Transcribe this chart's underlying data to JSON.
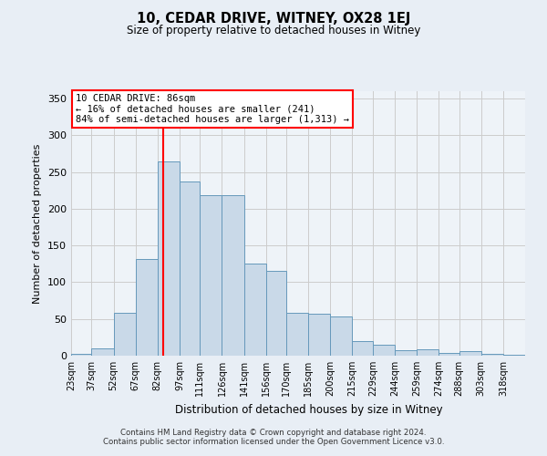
{
  "title": "10, CEDAR DRIVE, WITNEY, OX28 1EJ",
  "subtitle": "Size of property relative to detached houses in Witney",
  "xlabel": "Distribution of detached houses by size in Witney",
  "ylabel": "Number of detached properties",
  "bins": [
    "23sqm",
    "37sqm",
    "52sqm",
    "67sqm",
    "82sqm",
    "97sqm",
    "111sqm",
    "126sqm",
    "141sqm",
    "156sqm",
    "170sqm",
    "185sqm",
    "200sqm",
    "215sqm",
    "229sqm",
    "244sqm",
    "259sqm",
    "274sqm",
    "288sqm",
    "303sqm",
    "318sqm"
  ],
  "bin_edges": [
    23,
    37,
    52,
    67,
    82,
    97,
    111,
    126,
    141,
    156,
    170,
    185,
    200,
    215,
    229,
    244,
    259,
    274,
    288,
    303,
    318
  ],
  "bar_heights": [
    3,
    10,
    58,
    131,
    265,
    237,
    219,
    219,
    125,
    115,
    58,
    57,
    53,
    20,
    15,
    8,
    9,
    4,
    6,
    2,
    1
  ],
  "bar_color": "#c9d9e8",
  "bar_edge_color": "#6699bb",
  "grid_color": "#cccccc",
  "vline_x": 86,
  "vline_color": "red",
  "annotation_box_text": "10 CEDAR DRIVE: 86sqm\n← 16% of detached houses are smaller (241)\n84% of semi-detached houses are larger (1,313) →",
  "annotation_box_color": "white",
  "annotation_box_edge_color": "red",
  "ylim": [
    0,
    360
  ],
  "yticks": [
    0,
    50,
    100,
    150,
    200,
    250,
    300,
    350
  ],
  "footer": "Contains HM Land Registry data © Crown copyright and database right 2024.\nContains public sector information licensed under the Open Government Licence v3.0.",
  "bg_color": "#e8eef5",
  "plot_bg_color": "#eef3f8"
}
